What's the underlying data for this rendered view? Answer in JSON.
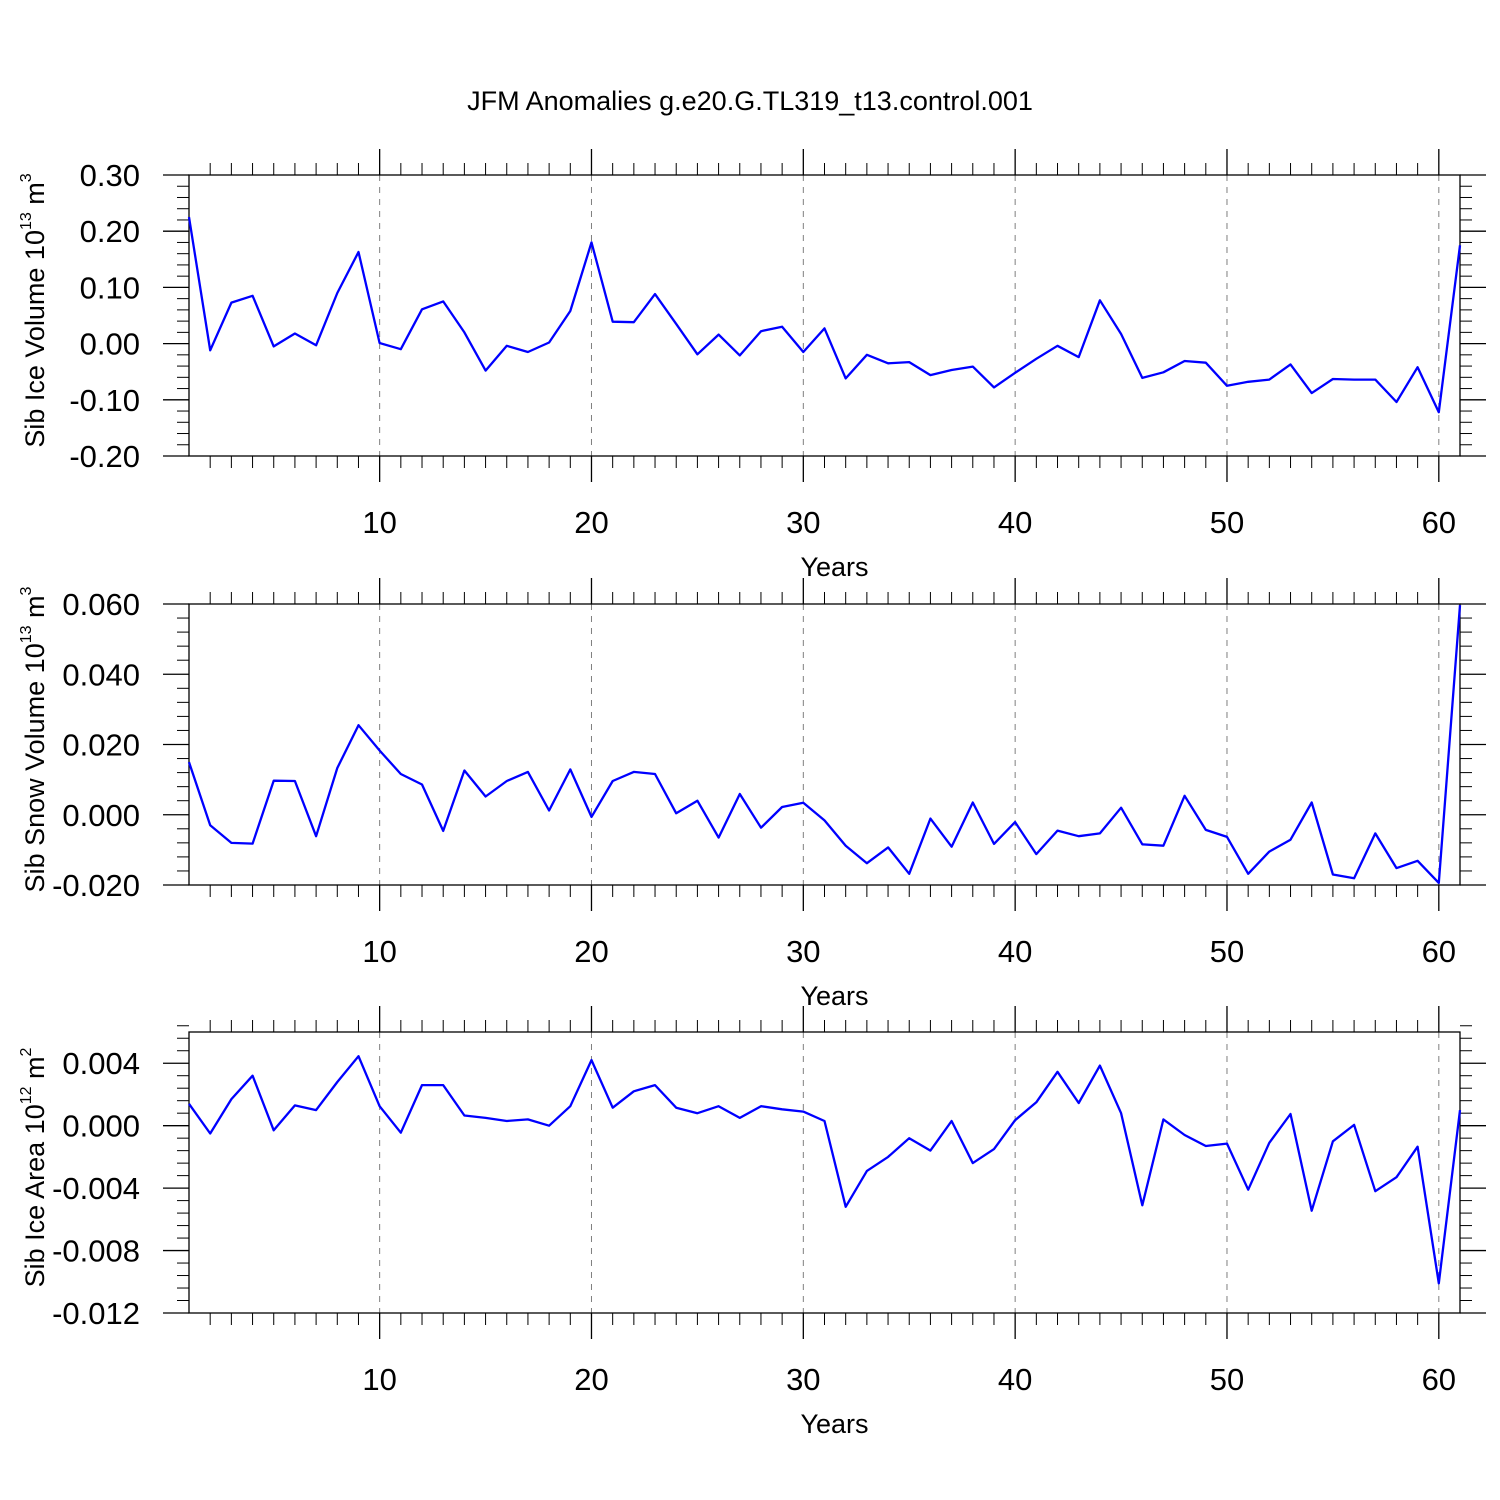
{
  "title": "JFM Anomalies g.e20.G.TL319_t13.control.001",
  "chart_data": [
    {
      "type": "line",
      "xlabel": "Years",
      "ylabel": {
        "base": "Sib Ice Volume 10",
        "exp": "13",
        "unit": " m",
        "unit_exp": "3"
      },
      "xlim": [
        1,
        61
      ],
      "ylim": [
        -0.2,
        0.3
      ],
      "xticks": [
        10,
        20,
        30,
        40,
        50,
        60
      ],
      "yticks": [
        -0.2,
        -0.1,
        0.0,
        0.1,
        0.2,
        0.3
      ],
      "ytick_labels": [
        "-0.20",
        "-0.10",
        "0.00",
        "0.10",
        "0.20",
        "0.30"
      ],
      "grid": "vertical dashed at major x ticks",
      "line_color": "#0000ff",
      "x": [
        1,
        2,
        3,
        4,
        5,
        6,
        7,
        8,
        9,
        10,
        11,
        12,
        13,
        14,
        15,
        16,
        17,
        18,
        19,
        20,
        21,
        22,
        23,
        24,
        25,
        26,
        27,
        28,
        29,
        30,
        31,
        32,
        33,
        34,
        35,
        36,
        37,
        38,
        39,
        40,
        41,
        42,
        43,
        44,
        45,
        46,
        47,
        48,
        49,
        50,
        51,
        52,
        53,
        54,
        55,
        56,
        57,
        58,
        59,
        60,
        61
      ],
      "values": [
        0.225,
        -0.012,
        0.073,
        0.085,
        -0.005,
        0.018,
        -0.003,
        0.09,
        0.163,
        0.001,
        -0.01,
        0.061,
        0.075,
        0.02,
        -0.048,
        -0.004,
        -0.015,
        0.002,
        0.058,
        0.18,
        0.039,
        0.038,
        0.088,
        0.035,
        -0.019,
        0.016,
        -0.021,
        0.022,
        0.03,
        -0.015,
        0.027,
        -0.062,
        -0.02,
        -0.035,
        -0.033,
        -0.056,
        -0.047,
        -0.041,
        -0.078,
        -0.052,
        -0.027,
        -0.004,
        -0.024,
        0.077,
        0.017,
        -0.061,
        -0.051,
        -0.031,
        -0.034,
        -0.075,
        -0.068,
        -0.064,
        -0.037,
        -0.088,
        -0.063,
        -0.064,
        -0.064,
        -0.104,
        -0.042,
        -0.122,
        0.175
      ]
    },
    {
      "type": "line",
      "xlabel": "Years",
      "ylabel": {
        "base": "Sib Snow Volume 10",
        "exp": "13",
        "unit": " m",
        "unit_exp": "3"
      },
      "xlim": [
        1,
        61
      ],
      "ylim": [
        -0.02,
        0.06
      ],
      "xticks": [
        10,
        20,
        30,
        40,
        50,
        60
      ],
      "yticks": [
        -0.02,
        0.0,
        0.02,
        0.04,
        0.06
      ],
      "ytick_labels": [
        "-0.020",
        "0.000",
        "0.020",
        "0.040",
        "0.060"
      ],
      "grid": "vertical dashed at major x ticks",
      "line_color": "#0000ff",
      "x": [
        1,
        2,
        3,
        4,
        5,
        6,
        7,
        8,
        9,
        10,
        11,
        12,
        13,
        14,
        15,
        16,
        17,
        18,
        19,
        20,
        21,
        22,
        23,
        24,
        25,
        26,
        27,
        28,
        29,
        30,
        31,
        32,
        33,
        34,
        35,
        36,
        37,
        38,
        39,
        40,
        41,
        42,
        43,
        44,
        45,
        46,
        47,
        48,
        49,
        50,
        51,
        52,
        53,
        54,
        55,
        56,
        57,
        58,
        59,
        60,
        61
      ],
      "values": [
        0.015,
        -0.003,
        -0.008,
        -0.0082,
        0.0097,
        0.0096,
        -0.0061,
        0.0133,
        0.0255,
        0.0183,
        0.0116,
        0.0086,
        -0.0046,
        0.0126,
        0.0052,
        0.0096,
        0.0122,
        0.0012,
        0.0129,
        -0.0006,
        0.0096,
        0.0122,
        0.0116,
        0.0004,
        0.004,
        -0.0065,
        0.0059,
        -0.0037,
        0.0022,
        0.0034,
        -0.0016,
        -0.0088,
        -0.0138,
        -0.0093,
        -0.0168,
        -0.0011,
        -0.0091,
        0.0035,
        -0.0083,
        -0.0021,
        -0.0112,
        -0.0045,
        -0.0061,
        -0.0053,
        0.002,
        -0.0084,
        -0.0088,
        0.0054,
        -0.0043,
        -0.0063,
        -0.0168,
        -0.0105,
        -0.0071,
        0.0035,
        -0.017,
        -0.0181,
        -0.0053,
        -0.0152,
        -0.0131,
        -0.0194,
        0.0597
      ]
    },
    {
      "type": "line",
      "xlabel": "Years",
      "ylabel": {
        "base": "Sib Ice Area 10",
        "exp": "12",
        "unit": " m",
        "unit_exp": "2"
      },
      "xlim": [
        1,
        61
      ],
      "ylim": [
        -0.012,
        0.006
      ],
      "xticks": [
        10,
        20,
        30,
        40,
        50,
        60
      ],
      "yticks": [
        -0.012,
        -0.008,
        -0.004,
        0.0,
        0.004
      ],
      "ytick_labels": [
        "-0.012",
        "-0.008",
        "-0.004",
        "0.000",
        "0.004"
      ],
      "grid": "vertical dashed at major x ticks",
      "line_color": "#0000ff",
      "x": [
        1,
        2,
        3,
        4,
        5,
        6,
        7,
        8,
        9,
        10,
        11,
        12,
        13,
        14,
        15,
        16,
        17,
        18,
        19,
        20,
        21,
        22,
        23,
        24,
        25,
        26,
        27,
        28,
        29,
        30,
        31,
        32,
        33,
        34,
        35,
        36,
        37,
        38,
        39,
        40,
        41,
        42,
        43,
        44,
        45,
        46,
        47,
        48,
        49,
        50,
        51,
        52,
        53,
        54,
        55,
        56,
        57,
        58,
        59,
        60,
        61
      ],
      "values": [
        0.0014,
        -0.0005,
        0.0017,
        0.0032,
        -0.0003,
        0.0013,
        0.001,
        0.0028,
        0.00445,
        0.00125,
        -0.00045,
        0.0026,
        0.0026,
        0.00065,
        0.0005,
        0.0003,
        0.0004,
        0.0,
        0.00125,
        0.0042,
        0.00115,
        0.0022,
        0.0026,
        0.00115,
        0.0008,
        0.00125,
        0.0005,
        0.00125,
        0.00105,
        0.0009,
        0.0003,
        -0.0052,
        -0.0029,
        -0.002,
        -0.0008,
        -0.0016,
        0.0003,
        -0.0024,
        -0.0015,
        0.00035,
        0.0015,
        0.00345,
        0.00145,
        0.00385,
        0.0008,
        -0.0051,
        0.0004,
        -0.0006,
        -0.0013,
        -0.00115,
        -0.0041,
        -0.0011,
        0.00075,
        -0.00545,
        -0.001,
        5e-05,
        -0.0042,
        -0.0033,
        -0.00135,
        -0.0101,
        0.001
      ]
    }
  ]
}
